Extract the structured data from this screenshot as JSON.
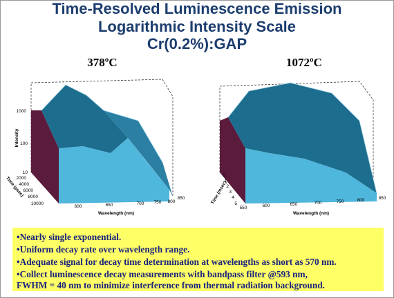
{
  "title": [
    "Time-Resolved Luminescence Emission",
    "Logarithmic Intensity Scale",
    "Cr(0.2%):GAP"
  ],
  "panels": [
    {
      "label": "378ºC",
      "z_label": "Intensity",
      "z_ticks": [
        "1000",
        "100",
        "10"
      ],
      "t_label": "Time (µsec)",
      "t_ticks": [
        "2000",
        "4000",
        "6000",
        "8000",
        "10000"
      ],
      "x_label": "Wavelength (nm)",
      "x_ticks": [
        "600",
        "650",
        "700",
        "750",
        "800",
        "850"
      ]
    },
    {
      "label": "1072ºC",
      "t_label": "Time (msec)",
      "t_ticks": [
        "0",
        "1",
        "2",
        "3",
        "4",
        "5"
      ],
      "x_label": "Wavelength (nm)",
      "x_ticks": [
        "550",
        "600",
        "650",
        "700",
        "750",
        "800",
        "850"
      ]
    }
  ],
  "bullets": [
    "•Nearly single exponential.",
    "•Uniform decay rate over wavelength range.",
    "•Adequate signal for decay time determination at wavelengths as short as 570 nm.",
    "•Collect luminescence decay measurements with bandpass filter @593 nm,",
    "FWHM = 40 nm to minimize interference from thermal radiation background."
  ]
}
